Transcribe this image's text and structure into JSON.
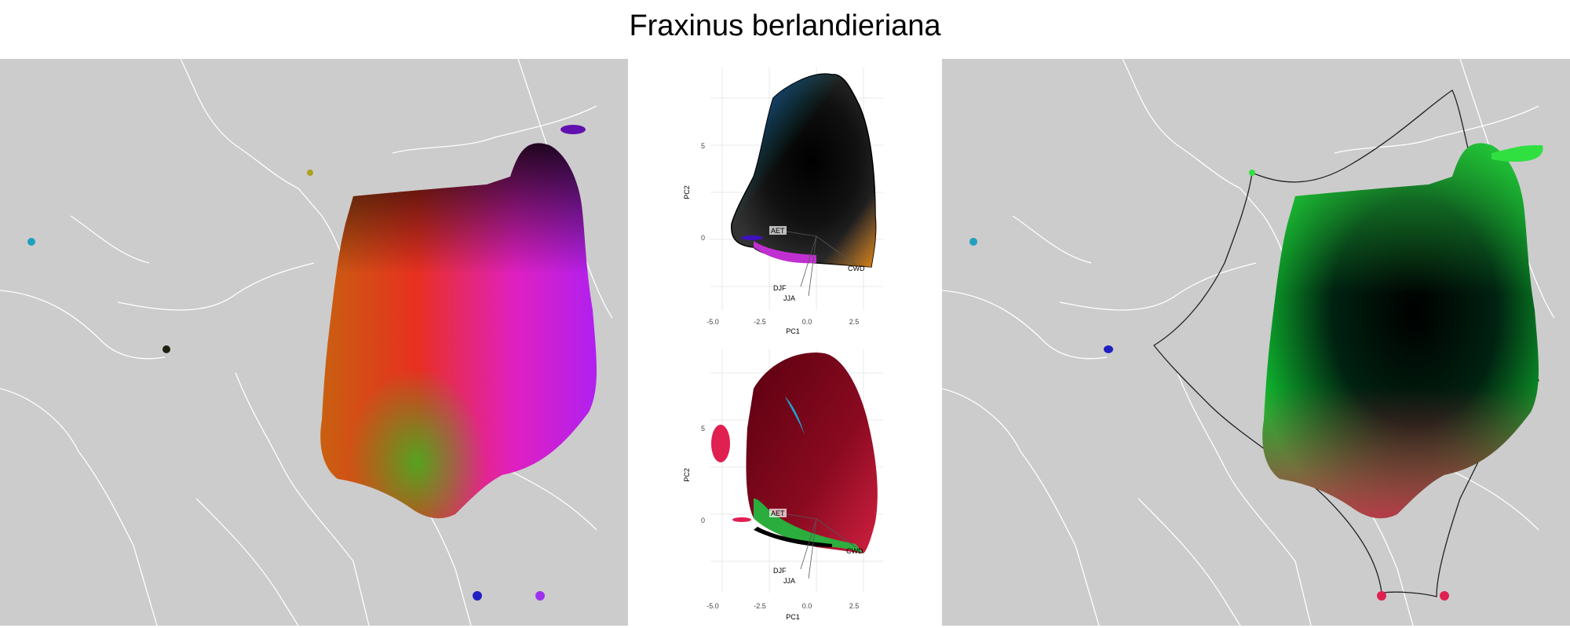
{
  "title": "Fraxinus berlandieriana",
  "plots": {
    "top": {
      "xlabel": "PC1",
      "ylabel": "PC2",
      "xticks": [
        "-5.0",
        "-2.5",
        "0.0",
        "2.5"
      ],
      "yticks": [
        "5",
        "0"
      ],
      "vectors": [
        "AET",
        "CWD",
        "DJF",
        "JJA"
      ]
    },
    "bottom": {
      "xlabel": "PC1",
      "ylabel": "PC2",
      "xticks": [
        "-5.0",
        "-2.5",
        "0.0",
        "2.5"
      ],
      "yticks": [
        "5",
        "0"
      ],
      "vectors": [
        "AET",
        "CWD",
        "DJF",
        "JJA"
      ]
    }
  },
  "colors": {
    "land": "#cccccc",
    "borders": "#ffffff",
    "accent_magenta": "#e020e0",
    "accent_green": "#20e040",
    "accent_red": "#e02050"
  }
}
